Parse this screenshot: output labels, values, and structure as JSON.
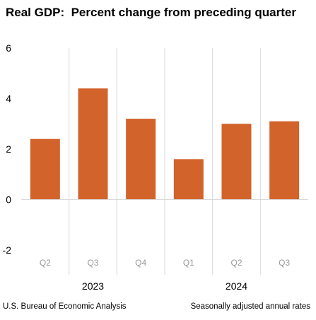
{
  "title": "Real GDP:  Percent change from preceding quarter",
  "footer": {
    "source": "U.S. Bureau of Economic Analysis",
    "note": "Seasonally adjusted annual rates"
  },
  "colors": {
    "bar": "#d2632a",
    "axis_text": "#000000",
    "tick_text": "#999999",
    "grid": "#d9d9d9"
  },
  "chart_data": {
    "type": "bar",
    "categories": [
      "Q2",
      "Q3",
      "Q4",
      "Q1",
      "Q2",
      "Q3"
    ],
    "category_groups": [
      {
        "label": "2023",
        "categories": [
          "Q2",
          "Q3",
          "Q4"
        ]
      },
      {
        "label": "2024",
        "categories": [
          "Q1",
          "Q2",
          "Q3"
        ]
      }
    ],
    "values": [
      2.4,
      4.4,
      3.2,
      1.6,
      3.0,
      3.1
    ],
    "ylim": [
      -2,
      6
    ],
    "yticks": [
      -2,
      0,
      2,
      4,
      6
    ],
    "title": "Real GDP:  Percent change from preceding quarter",
    "xlabel": "",
    "ylabel": "",
    "grid": "vertical separators"
  }
}
